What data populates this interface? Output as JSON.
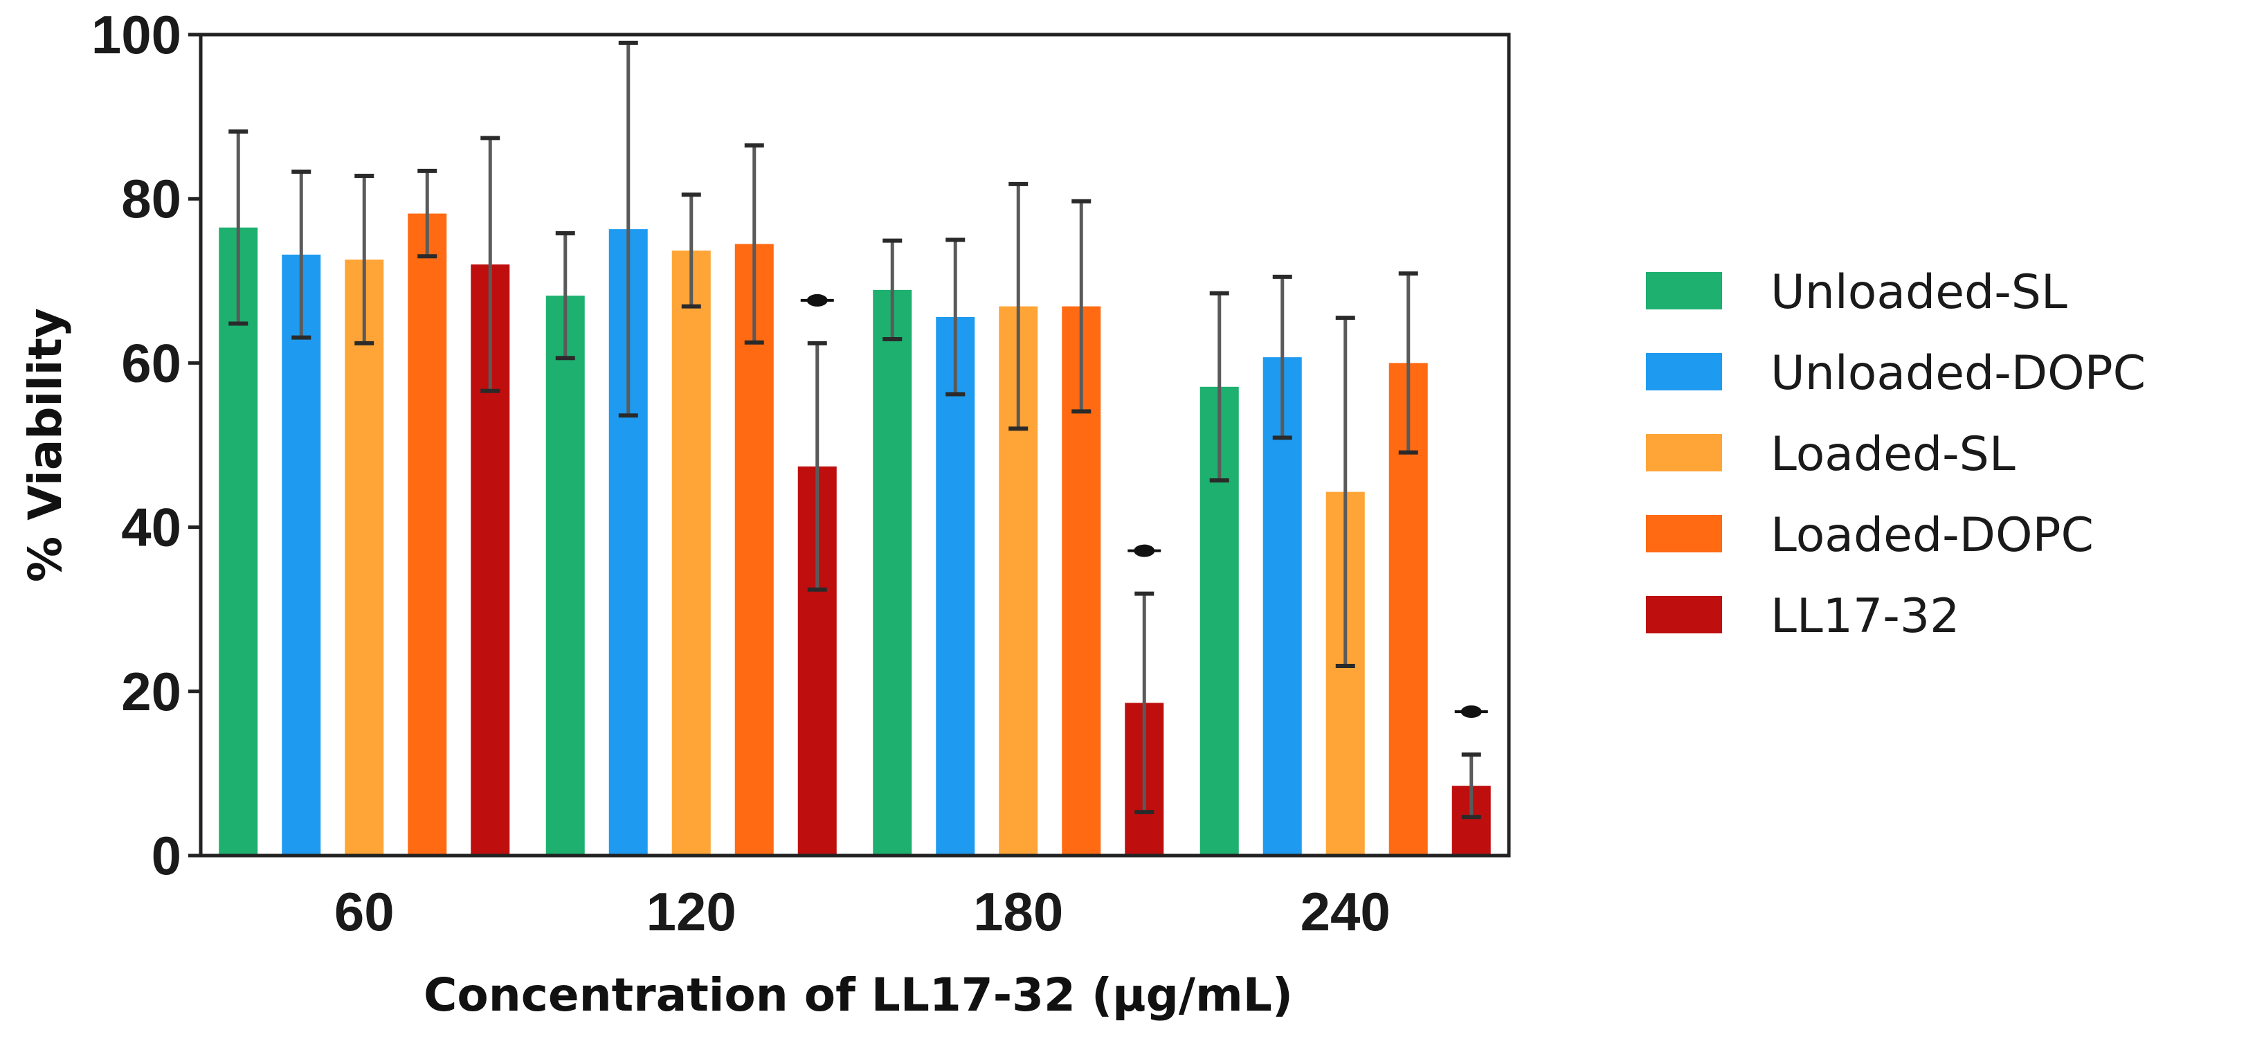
{
  "chart_data": {
    "type": "bar",
    "title": "",
    "xlabel": "Concentration of LL17-32 (µg/mL)",
    "ylabel": "% Viability",
    "ylim": [
      0,
      100
    ],
    "yticks": [
      0,
      20,
      40,
      60,
      80,
      100
    ],
    "categories": [
      "60",
      "120",
      "180",
      "240"
    ],
    "grid": false,
    "legend_position": "right",
    "series": [
      {
        "name": "Unloaded-SL",
        "color": "#1DB06F",
        "values": [
          76.5,
          68.2,
          68.9,
          57.1
        ],
        "errors": [
          11.7,
          7.6,
          6.0,
          11.4
        ],
        "significant": [
          false,
          false,
          false,
          false
        ]
      },
      {
        "name": "Unloaded-DOPC",
        "color": "#1E9BF0",
        "values": [
          73.2,
          76.3,
          65.6,
          60.7
        ],
        "errors": [
          10.1,
          22.7,
          9.4,
          9.8
        ],
        "significant": [
          false,
          false,
          false,
          false
        ]
      },
      {
        "name": "Loaded-SL",
        "color": "#FFA537",
        "values": [
          72.6,
          73.7,
          66.9,
          44.3
        ],
        "errors": [
          10.2,
          6.8,
          14.9,
          21.2
        ],
        "significant": [
          false,
          false,
          false,
          false
        ]
      },
      {
        "name": "Loaded-DOPC",
        "color": "#FF6A13",
        "values": [
          78.2,
          74.5,
          66.9,
          60.0
        ],
        "errors": [
          5.2,
          12.0,
          12.8,
          10.9
        ],
        "significant": [
          false,
          false,
          false,
          false
        ]
      },
      {
        "name": "LL17-32",
        "color": "#BE0E0E",
        "values": [
          72.0,
          47.4,
          18.6,
          8.5
        ],
        "errors": [
          15.4,
          15.0,
          13.3,
          3.8
        ],
        "significant": [
          false,
          true,
          true,
          true
        ]
      }
    ]
  }
}
